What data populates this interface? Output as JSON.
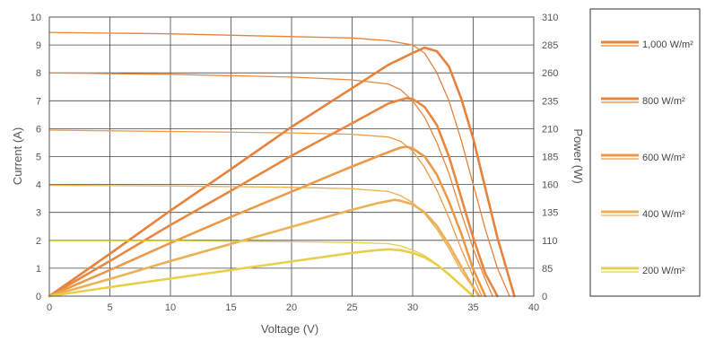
{
  "chart_data": {
    "type": "line",
    "xlabel": "Voltage (V)",
    "ylabel": "Current (A)",
    "y2label": "Power (W)",
    "xlim": [
      0,
      40
    ],
    "ylim": [
      0,
      10
    ],
    "y2lim": [
      0,
      310
    ],
    "x_ticks": [
      0,
      5,
      10,
      15,
      20,
      25,
      30,
      35,
      40
    ],
    "y_ticks": [
      0,
      1,
      2,
      3,
      4,
      5,
      6,
      7,
      8,
      9,
      10
    ],
    "y2_ticks": [
      0,
      85,
      110,
      135,
      160,
      185,
      210,
      235,
      260,
      285,
      310
    ],
    "grid": true,
    "legend_position": "right",
    "series": [
      {
        "name": "1,000 W/m²",
        "color": "#E8823A",
        "current_thin": [
          [
            0,
            9.45
          ],
          [
            10,
            9.4
          ],
          [
            20,
            9.3
          ],
          [
            25,
            9.25
          ],
          [
            28,
            9.15
          ],
          [
            30,
            9.0
          ],
          [
            31,
            8.7
          ],
          [
            32,
            8.0
          ],
          [
            33,
            7.0
          ],
          [
            34,
            5.6
          ],
          [
            35,
            4.0
          ],
          [
            36,
            2.4
          ],
          [
            37,
            1.0
          ],
          [
            38,
            0.0
          ]
        ],
        "power_thick": [
          [
            0,
            0
          ],
          [
            5,
            47
          ],
          [
            10,
            95
          ],
          [
            15,
            141
          ],
          [
            20,
            188
          ],
          [
            25,
            231
          ],
          [
            28,
            257
          ],
          [
            30,
            270
          ],
          [
            31,
            276
          ],
          [
            32,
            272
          ],
          [
            33,
            255
          ],
          [
            34,
            220
          ],
          [
            35,
            175
          ],
          [
            36,
            120
          ],
          [
            37,
            65
          ],
          [
            38.4,
            0
          ]
        ]
      },
      {
        "name": "800 W/m²",
        "color": "#E8873E",
        "current_thin": [
          [
            0,
            8.0
          ],
          [
            10,
            7.95
          ],
          [
            20,
            7.85
          ],
          [
            25,
            7.75
          ],
          [
            28,
            7.6
          ],
          [
            29,
            7.4
          ],
          [
            30,
            7.0
          ],
          [
            31,
            6.4
          ],
          [
            32,
            5.5
          ],
          [
            33,
            4.4
          ],
          [
            34,
            3.0
          ],
          [
            35,
            1.7
          ],
          [
            36,
            0.6
          ],
          [
            36.6,
            0.0
          ]
        ],
        "power_thick": [
          [
            0,
            0
          ],
          [
            5,
            39
          ],
          [
            10,
            79
          ],
          [
            15,
            117
          ],
          [
            20,
            156
          ],
          [
            25,
            192
          ],
          [
            28,
            214
          ],
          [
            29.5,
            220
          ],
          [
            30,
            219
          ],
          [
            31,
            210
          ],
          [
            32,
            190
          ],
          [
            33,
            155
          ],
          [
            34,
            110
          ],
          [
            35,
            65
          ],
          [
            36,
            25
          ],
          [
            37,
            0
          ]
        ]
      },
      {
        "name": "600 W/m²",
        "color": "#EC9A48",
        "current_thin": [
          [
            0,
            5.95
          ],
          [
            10,
            5.9
          ],
          [
            20,
            5.85
          ],
          [
            25,
            5.8
          ],
          [
            28,
            5.7
          ],
          [
            29,
            5.55
          ],
          [
            30,
            5.2
          ],
          [
            31,
            4.6
          ],
          [
            32,
            3.8
          ],
          [
            33,
            2.8
          ],
          [
            34,
            1.7
          ],
          [
            35,
            0.7
          ],
          [
            35.7,
            0.0
          ]
        ],
        "power_thick": [
          [
            0,
            0
          ],
          [
            5,
            29
          ],
          [
            10,
            59
          ],
          [
            15,
            88
          ],
          [
            20,
            116
          ],
          [
            25,
            144
          ],
          [
            28,
            160
          ],
          [
            29,
            165
          ],
          [
            29.5,
            166
          ],
          [
            30,
            164
          ],
          [
            31,
            155
          ],
          [
            32,
            135
          ],
          [
            33,
            105
          ],
          [
            34,
            70
          ],
          [
            35,
            30
          ],
          [
            36,
            0
          ]
        ]
      },
      {
        "name": "400 W/m²",
        "color": "#EDB055",
        "current_thin": [
          [
            0,
            3.97
          ],
          [
            10,
            3.95
          ],
          [
            20,
            3.9
          ],
          [
            25,
            3.85
          ],
          [
            28,
            3.75
          ],
          [
            29,
            3.6
          ],
          [
            30,
            3.35
          ],
          [
            31,
            2.95
          ],
          [
            32,
            2.4
          ],
          [
            33,
            1.7
          ],
          [
            34,
            0.9
          ],
          [
            35,
            0.3
          ],
          [
            35.4,
            0.0
          ]
        ],
        "power_thick": [
          [
            0,
            0
          ],
          [
            5,
            19
          ],
          [
            10,
            39
          ],
          [
            15,
            58
          ],
          [
            20,
            77
          ],
          [
            25,
            96
          ],
          [
            27,
            103
          ],
          [
            28.5,
            107
          ],
          [
            29,
            106
          ],
          [
            30,
            102
          ],
          [
            31,
            93
          ],
          [
            32,
            78
          ],
          [
            33,
            57
          ],
          [
            34,
            33
          ],
          [
            35,
            10
          ],
          [
            35.5,
            0
          ]
        ]
      },
      {
        "name": "200 W/m²",
        "color": "#E8CF4A",
        "current_thin": [
          [
            0,
            1.98
          ],
          [
            10,
            1.98
          ],
          [
            20,
            1.95
          ],
          [
            25,
            1.92
          ],
          [
            28,
            1.88
          ],
          [
            29,
            1.8
          ],
          [
            30,
            1.65
          ],
          [
            31,
            1.45
          ],
          [
            32,
            1.15
          ],
          [
            33,
            0.8
          ],
          [
            34,
            0.4
          ],
          [
            35,
            0.0
          ]
        ],
        "power_thick": [
          [
            0,
            0
          ],
          [
            5,
            10
          ],
          [
            10,
            19.5
          ],
          [
            15,
            29
          ],
          [
            20,
            38.5
          ],
          [
            25,
            48
          ],
          [
            27,
            51
          ],
          [
            28,
            52
          ],
          [
            29,
            51
          ],
          [
            30,
            48
          ],
          [
            31,
            43
          ],
          [
            32,
            35
          ],
          [
            33,
            24
          ],
          [
            34,
            12
          ],
          [
            35,
            0
          ]
        ]
      }
    ]
  }
}
